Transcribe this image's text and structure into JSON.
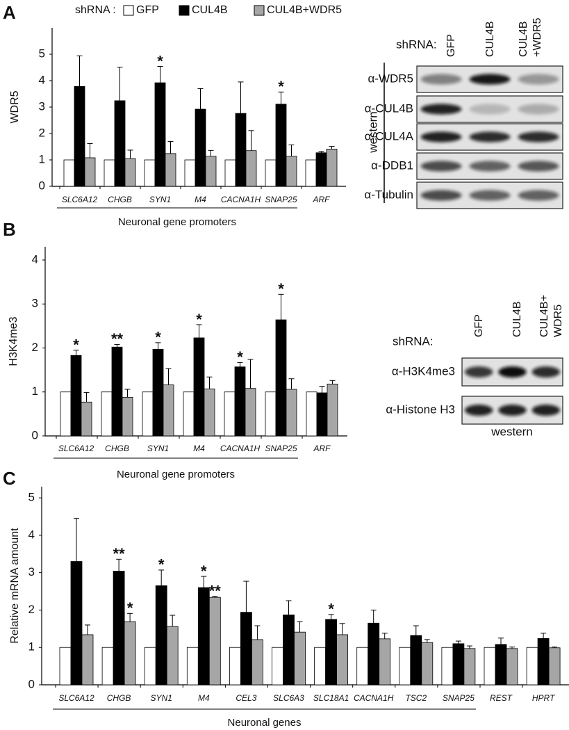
{
  "panel_labels": [
    "A",
    "B",
    "C"
  ],
  "chart_data": [
    {
      "type": "bar",
      "ylabel": "WDR5",
      "legend_title": "shRNA :",
      "legend": true,
      "categories": [
        "SLC6A12",
        "CHGB",
        "SYN1",
        "M4",
        "CACNA1H",
        "SNAP25",
        "ARF"
      ],
      "group_label": "Neuronal gene promoters",
      "ylim": [
        0,
        6
      ],
      "yticks": [
        0,
        1,
        2,
        3,
        4,
        5
      ],
      "series": [
        {
          "name": "GFP",
          "color": "#ffffff",
          "values": [
            1,
            1,
            1,
            1,
            1,
            1,
            1
          ]
        },
        {
          "name": "CUL4B",
          "color": "#000000",
          "values": [
            3.78,
            3.24,
            3.92,
            2.92,
            2.76,
            3.11,
            1.27
          ],
          "errors": [
            1.16,
            1.27,
            0.62,
            0.78,
            1.19,
            0.46,
            0.05
          ],
          "stars": [
            null,
            null,
            "*",
            null,
            null,
            "*",
            null
          ]
        },
        {
          "name": "CUL4B+WDR5",
          "color": "#a6a6a6",
          "values": [
            1.08,
            1.05,
            1.24,
            1.14,
            1.35,
            1.14,
            1.41
          ],
          "errors": [
            0.54,
            0.32,
            0.46,
            0.22,
            0.76,
            0.43,
            0.1
          ]
        }
      ]
    },
    {
      "type": "bar",
      "ylabel": "H3K4me3",
      "categories": [
        "SLC6A12",
        "CHGB",
        "SYN1",
        "M4",
        "CACNA1H",
        "SNAP25",
        "ARF"
      ],
      "group_label": "Neuronal gene promoters",
      "ylim": [
        0,
        4.3
      ],
      "yticks": [
        0,
        1,
        2,
        3,
        4
      ],
      "series": [
        {
          "color": "#ffffff",
          "values": [
            1,
            1,
            1,
            1,
            1,
            1,
            1
          ]
        },
        {
          "color": "#000000",
          "values": [
            1.83,
            2.02,
            1.97,
            2.23,
            1.57,
            2.64,
            0.98
          ],
          "errors": [
            0.12,
            0.06,
            0.15,
            0.3,
            0.1,
            0.58,
            0.15
          ],
          "stars": [
            "*",
            "**",
            "*",
            "*",
            "*",
            "*",
            null
          ]
        },
        {
          "color": "#a6a6a6",
          "values": [
            0.77,
            0.88,
            1.16,
            1.07,
            1.08,
            1.06,
            1.18
          ],
          "errors": [
            0.22,
            0.18,
            0.37,
            0.27,
            0.66,
            0.24,
            0.08
          ]
        }
      ]
    },
    {
      "type": "bar",
      "ylabel": "Relative mRNA amount",
      "categories": [
        "SLC6A12",
        "CHGB",
        "SYN1",
        "M4",
        "CEL3",
        "SLC6A3",
        "SLC18A1",
        "CACNA1H",
        "TSC2",
        "SNAP25",
        "REST",
        "HPRT"
      ],
      "group_label": "Neuronal genes",
      "ylim": [
        0,
        5.3
      ],
      "yticks": [
        0,
        1,
        2,
        3,
        4,
        5
      ],
      "series": [
        {
          "color": "#ffffff",
          "values": [
            1,
            1,
            1,
            1,
            1,
            1,
            1,
            1,
            1,
            1,
            1,
            1
          ]
        },
        {
          "color": "#000000",
          "values": [
            3.3,
            3.04,
            2.65,
            2.6,
            1.94,
            1.87,
            1.75,
            1.65,
            1.32,
            1.1,
            1.08,
            1.24
          ],
          "errors": [
            1.15,
            0.32,
            0.42,
            0.3,
            0.83,
            0.38,
            0.13,
            0.35,
            0.26,
            0.07,
            0.17,
            0.14
          ],
          "stars": [
            null,
            "**",
            "*",
            "*",
            null,
            null,
            "*",
            null,
            null,
            null,
            null,
            null
          ]
        },
        {
          "color": "#a6a6a6",
          "values": [
            1.34,
            1.69,
            1.56,
            2.34,
            1.21,
            1.41,
            1.34,
            1.23,
            1.13,
            0.97,
            0.97,
            0.99
          ],
          "errors": [
            0.26,
            0.22,
            0.3,
            0.03,
            0.37,
            0.28,
            0.3,
            0.15,
            0.08,
            0.07,
            0.04,
            0.02
          ],
          "stars": [
            null,
            "*",
            null,
            "**",
            null,
            null,
            null,
            null,
            null,
            null,
            null,
            null
          ]
        }
      ]
    }
  ],
  "blots": [
    {
      "header": "shRNA:",
      "lanes": [
        [
          "GFP"
        ],
        [
          "CUL4B"
        ],
        [
          "CUL4B",
          "+WDR5"
        ]
      ],
      "rows": [
        "α-WDR5",
        "α-CUL4B",
        "α-CUL4A",
        "α-DDB1",
        "α-Tubulin"
      ],
      "side_label": "western"
    },
    {
      "header": "shRNA:",
      "lanes": [
        [
          "GFP"
        ],
        [
          "CUL4B"
        ],
        [
          "CUL4B+",
          "WDR5"
        ]
      ],
      "rows": [
        "α-H3K4me3",
        "α-Histone H3"
      ],
      "caption": "western"
    }
  ]
}
